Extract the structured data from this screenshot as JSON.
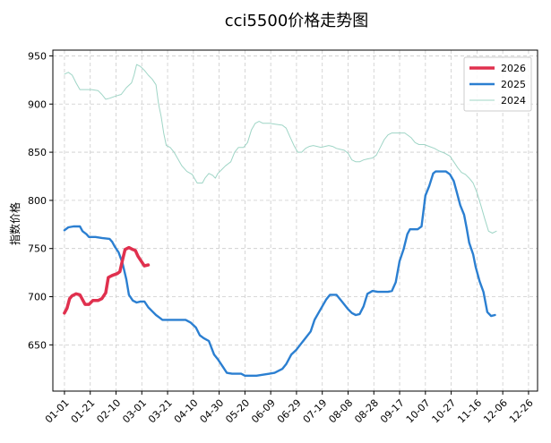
{
  "chart_data": {
    "type": "line",
    "title": "cci5500价格走势图",
    "xlabel": "",
    "ylabel": "指数价格",
    "ylim": [
      602,
      956
    ],
    "yticks": [
      650,
      700,
      750,
      800,
      850,
      900,
      950
    ],
    "xlim_day": [
      -8,
      368
    ],
    "xticks": [
      "01-01",
      "01-21",
      "02-10",
      "03-01",
      "03-21",
      "04-10",
      "04-30",
      "05-20",
      "06-09",
      "06-29",
      "07-19",
      "08-08",
      "08-28",
      "09-17",
      "10-07",
      "10-27",
      "11-16",
      "12-06",
      "12-26"
    ],
    "grid": true,
    "legend_position": "top-right",
    "series": [
      {
        "name": "2026",
        "color": "#e0304e",
        "points": [
          [
            1,
            683
          ],
          [
            3,
            688
          ],
          [
            5,
            698
          ],
          [
            7,
            701
          ],
          [
            10,
            703
          ],
          [
            13,
            702
          ],
          [
            15,
            697
          ],
          [
            17,
            692
          ],
          [
            20,
            692
          ],
          [
            23,
            696
          ],
          [
            27,
            696
          ],
          [
            30,
            698
          ],
          [
            33,
            704
          ],
          [
            35,
            720
          ],
          [
            38,
            722
          ],
          [
            42,
            724
          ],
          [
            44,
            726
          ],
          [
            46,
            738
          ],
          [
            48,
            749
          ],
          [
            51,
            751
          ],
          [
            54,
            749
          ],
          [
            56,
            748
          ],
          [
            58,
            742
          ],
          [
            61,
            736
          ],
          [
            63,
            732
          ],
          [
            66,
            733
          ]
        ]
      },
      {
        "name": "2025",
        "color": "#2b7fd1",
        "points": [
          [
            1,
            769
          ],
          [
            4,
            772
          ],
          [
            8,
            773
          ],
          [
            13,
            773
          ],
          [
            15,
            768
          ],
          [
            18,
            765
          ],
          [
            20,
            762
          ],
          [
            25,
            762
          ],
          [
            30,
            761
          ],
          [
            36,
            760
          ],
          [
            38,
            757
          ],
          [
            40,
            752
          ],
          [
            43,
            746
          ],
          [
            46,
            735
          ],
          [
            49,
            718
          ],
          [
            51,
            702
          ],
          [
            54,
            696
          ],
          [
            57,
            694
          ],
          [
            60,
            695
          ],
          [
            63,
            695
          ],
          [
            66,
            689
          ],
          [
            69,
            685
          ],
          [
            72,
            681
          ],
          [
            75,
            678
          ],
          [
            77,
            676
          ],
          [
            85,
            676
          ],
          [
            95,
            676
          ],
          [
            99,
            673
          ],
          [
            103,
            668
          ],
          [
            106,
            660
          ],
          [
            109,
            657
          ],
          [
            113,
            654
          ],
          [
            117,
            640
          ],
          [
            120,
            635
          ],
          [
            124,
            627
          ],
          [
            127,
            621
          ],
          [
            131,
            620
          ],
          [
            135,
            620
          ],
          [
            138,
            620
          ],
          [
            141,
            618
          ],
          [
            145,
            618
          ],
          [
            150,
            618
          ],
          [
            155,
            619
          ],
          [
            160,
            620
          ],
          [
            164,
            621
          ],
          [
            170,
            625
          ],
          [
            173,
            630
          ],
          [
            177,
            640
          ],
          [
            181,
            645
          ],
          [
            185,
            652
          ],
          [
            188,
            657
          ],
          [
            192,
            664
          ],
          [
            195,
            676
          ],
          [
            198,
            683
          ],
          [
            201,
            690
          ],
          [
            204,
            697
          ],
          [
            207,
            702
          ],
          [
            212,
            702
          ],
          [
            215,
            697
          ],
          [
            218,
            692
          ],
          [
            221,
            687
          ],
          [
            224,
            683
          ],
          [
            227,
            681
          ],
          [
            230,
            682
          ],
          [
            233,
            690
          ],
          [
            236,
            703
          ],
          [
            240,
            706
          ],
          [
            244,
            705
          ],
          [
            248,
            705
          ],
          [
            252,
            705
          ],
          [
            255,
            706
          ],
          [
            258,
            715
          ],
          [
            261,
            737
          ],
          [
            264,
            749
          ],
          [
            267,
            765
          ],
          [
            269,
            770
          ],
          [
            272,
            770
          ],
          [
            275,
            770
          ],
          [
            278,
            773
          ],
          [
            281,
            805
          ],
          [
            284,
            815
          ],
          [
            287,
            828
          ],
          [
            289,
            830
          ],
          [
            293,
            830
          ],
          [
            297,
            830
          ],
          [
            300,
            827
          ],
          [
            303,
            820
          ],
          [
            305,
            810
          ],
          [
            308,
            795
          ],
          [
            311,
            785
          ],
          [
            313,
            771
          ],
          [
            315,
            756
          ],
          [
            318,
            744
          ],
          [
            320,
            731
          ],
          [
            323,
            716
          ],
          [
            326,
            705
          ],
          [
            329,
            684
          ],
          [
            332,
            680
          ],
          [
            335,
            681
          ]
        ]
      },
      {
        "name": "2024",
        "color": "#9fd5c6",
        "points": [
          [
            1,
            931
          ],
          [
            4,
            933
          ],
          [
            7,
            930
          ],
          [
            10,
            922
          ],
          [
            13,
            915
          ],
          [
            18,
            915
          ],
          [
            22,
            915
          ],
          [
            27,
            914
          ],
          [
            30,
            910
          ],
          [
            33,
            905
          ],
          [
            36,
            906
          ],
          [
            40,
            908
          ],
          [
            45,
            910
          ],
          [
            49,
            917
          ],
          [
            53,
            922
          ],
          [
            55,
            930
          ],
          [
            57,
            941
          ],
          [
            60,
            939
          ],
          [
            63,
            935
          ],
          [
            66,
            930
          ],
          [
            69,
            926
          ],
          [
            72,
            920
          ],
          [
            74,
            900
          ],
          [
            76,
            887
          ],
          [
            78,
            870
          ],
          [
            80,
            857
          ],
          [
            83,
            855
          ],
          [
            86,
            850
          ],
          [
            89,
            843
          ],
          [
            92,
            836
          ],
          [
            96,
            830
          ],
          [
            100,
            827
          ],
          [
            104,
            818
          ],
          [
            108,
            818
          ],
          [
            110,
            823
          ],
          [
            113,
            828
          ],
          [
            116,
            826
          ],
          [
            118,
            823
          ],
          [
            120,
            828
          ],
          [
            123,
            832
          ],
          [
            126,
            836
          ],
          [
            130,
            840
          ],
          [
            133,
            850
          ],
          [
            136,
            855
          ],
          [
            140,
            855
          ],
          [
            143,
            860
          ],
          [
            146,
            873
          ],
          [
            149,
            880
          ],
          [
            152,
            882
          ],
          [
            155,
            880
          ],
          [
            160,
            880
          ],
          [
            165,
            879
          ],
          [
            170,
            878
          ],
          [
            173,
            875
          ],
          [
            176,
            866
          ],
          [
            179,
            857
          ],
          [
            182,
            850
          ],
          [
            185,
            850
          ],
          [
            188,
            854
          ],
          [
            191,
            856
          ],
          [
            194,
            857
          ],
          [
            197,
            856
          ],
          [
            200,
            855
          ],
          [
            203,
            856
          ],
          [
            206,
            857
          ],
          [
            209,
            856
          ],
          [
            212,
            854
          ],
          [
            215,
            853
          ],
          [
            218,
            852
          ],
          [
            221,
            849
          ],
          [
            224,
            842
          ],
          [
            227,
            840
          ],
          [
            230,
            840
          ],
          [
            233,
            842
          ],
          [
            236,
            843
          ],
          [
            240,
            844
          ],
          [
            243,
            847
          ],
          [
            246,
            855
          ],
          [
            249,
            863
          ],
          [
            252,
            868
          ],
          [
            255,
            870
          ],
          [
            260,
            870
          ],
          [
            265,
            870
          ],
          [
            270,
            865
          ],
          [
            273,
            860
          ],
          [
            276,
            858
          ],
          [
            280,
            858
          ],
          [
            284,
            856
          ],
          [
            288,
            854
          ],
          [
            292,
            851
          ],
          [
            296,
            849
          ],
          [
            300,
            846
          ],
          [
            303,
            840
          ],
          [
            306,
            834
          ],
          [
            309,
            829
          ],
          [
            312,
            827
          ],
          [
            315,
            823
          ],
          [
            318,
            818
          ],
          [
            321,
            808
          ],
          [
            324,
            795
          ],
          [
            327,
            781
          ],
          [
            330,
            768
          ],
          [
            333,
            766
          ],
          [
            336,
            768
          ]
        ]
      }
    ]
  }
}
